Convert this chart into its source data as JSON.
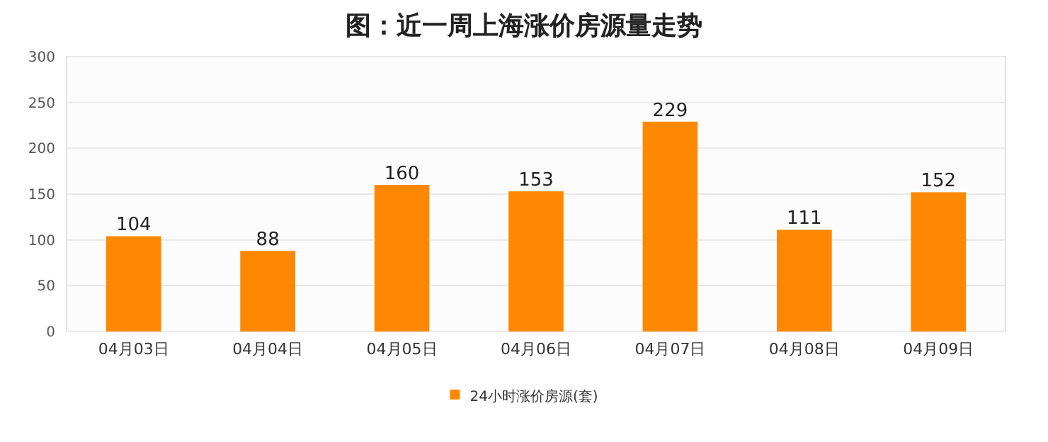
{
  "chart_data": {
    "type": "bar",
    "title": "图：近一周上海涨价房源量走势",
    "categories": [
      "04月03日",
      "04月04日",
      "04月05日",
      "04月06日",
      "04月07日",
      "04月08日",
      "04月09日"
    ],
    "series": [
      {
        "name": "24小时涨价房源(套)",
        "color": "#ff8800",
        "values": [
          104,
          88,
          160,
          153,
          229,
          111,
          152
        ]
      }
    ],
    "ylim": [
      0,
      300
    ],
    "yticks": [
      0,
      50,
      100,
      150,
      200,
      250,
      300
    ],
    "grid": "y",
    "legend": "bottom",
    "data_labels": true
  }
}
